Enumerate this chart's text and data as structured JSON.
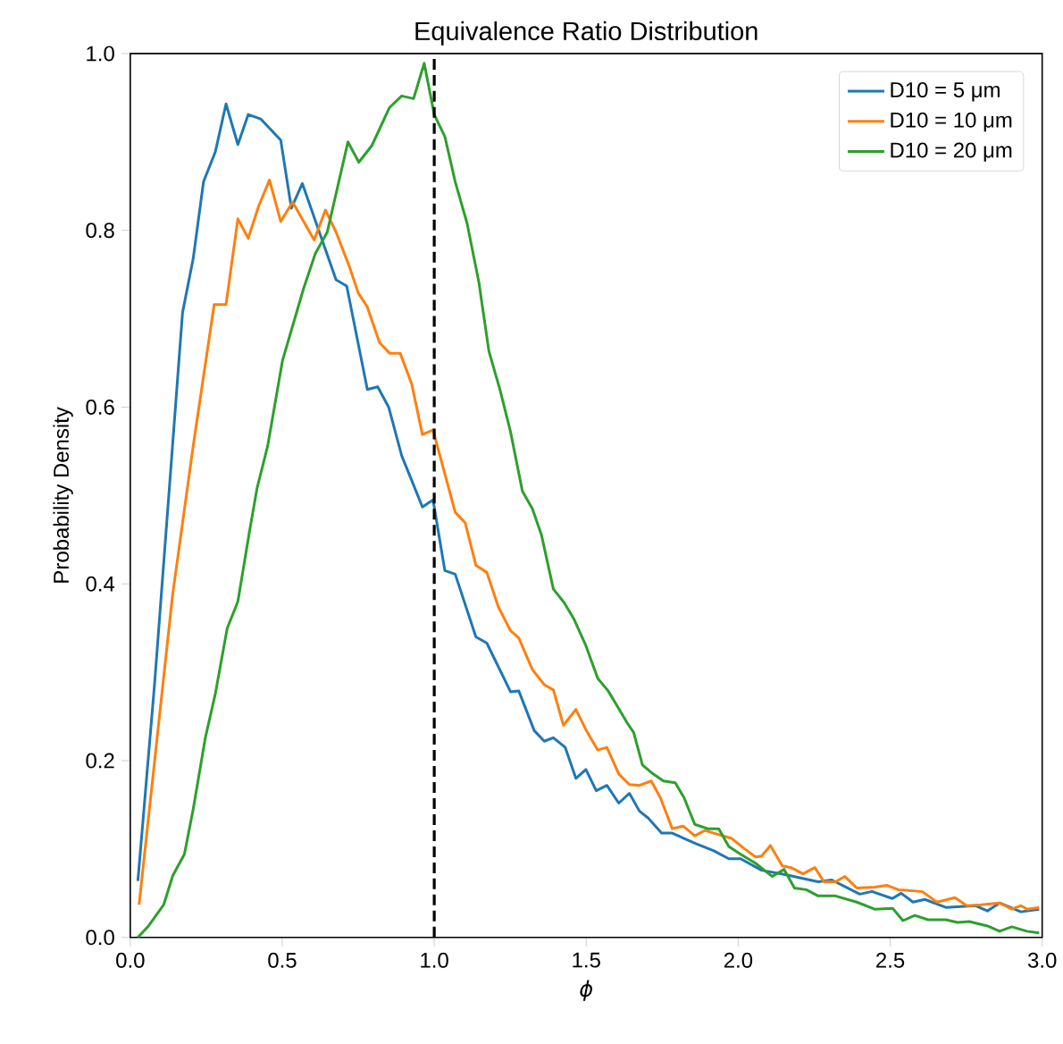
{
  "chart_data": {
    "type": "line",
    "title": "Equivalence Ratio Distribution",
    "xlabel": "ϕ",
    "ylabel": "Probability Density",
    "xlim": [
      0,
      3
    ],
    "ylim": [
      0,
      1
    ],
    "xticks": [
      {
        "value": 0,
        "label": "0.0"
      },
      {
        "value": 0.5,
        "label": "0.5"
      },
      {
        "value": 1,
        "label": "1.0"
      },
      {
        "value": 1.5,
        "label": "1.5"
      },
      {
        "value": 2,
        "label": "2.0"
      },
      {
        "value": 2.5,
        "label": "2.5"
      },
      {
        "value": 3,
        "label": "3.0"
      }
    ],
    "yticks": [
      {
        "value": 0,
        "label": "0.0"
      },
      {
        "value": 0.2,
        "label": "0.2"
      },
      {
        "value": 0.4,
        "label": "0.4"
      },
      {
        "value": 0.6,
        "label": "0.6"
      },
      {
        "value": 0.8,
        "label": "0.8"
      },
      {
        "value": 1,
        "label": "1.0"
      }
    ],
    "legend": "top right",
    "grid": false,
    "marker": "none",
    "line_style": "solid",
    "ref_lines": [
      {
        "axis": "x",
        "value": 1,
        "color": "#000000",
        "line_style": "dashed"
      }
    ],
    "series": [
      {
        "name": "D10 = 5 μm",
        "color": "#1f77b4",
        "x": [
          0.025,
          0.08,
          0.139,
          0.172,
          0.207,
          0.241,
          0.28,
          0.315,
          0.354,
          0.388,
          0.429,
          0.495,
          0.53,
          0.566,
          0.677,
          0.712,
          0.78,
          0.814,
          0.85,
          0.893,
          0.94,
          0.961,
          0.996,
          1.035,
          1.069,
          1.137,
          1.173,
          1.251,
          1.278,
          1.329,
          1.362,
          1.392,
          1.431,
          1.466,
          1.499,
          1.533,
          1.568,
          1.607,
          1.642,
          1.675,
          1.704,
          1.748,
          1.783,
          1.861,
          1.92,
          1.969,
          2.008,
          2.077,
          2.155,
          2.263,
          2.308,
          2.4,
          2.44,
          2.507,
          2.536,
          2.575,
          2.614,
          2.683,
          2.78,
          2.82,
          2.86,
          2.93,
          2.99
        ],
        "values": [
          0.064,
          0.287,
          0.556,
          0.707,
          0.768,
          0.855,
          0.889,
          0.943,
          0.897,
          0.931,
          0.926,
          0.902,
          0.825,
          0.853,
          0.744,
          0.737,
          0.62,
          0.623,
          0.6,
          0.545,
          0.505,
          0.487,
          0.495,
          0.415,
          0.411,
          0.34,
          0.333,
          0.278,
          0.279,
          0.234,
          0.222,
          0.226,
          0.215,
          0.18,
          0.19,
          0.166,
          0.172,
          0.152,
          0.163,
          0.143,
          0.135,
          0.118,
          0.118,
          0.106,
          0.098,
          0.089,
          0.089,
          0.076,
          0.071,
          0.063,
          0.065,
          0.049,
          0.052,
          0.044,
          0.05,
          0.04,
          0.043,
          0.034,
          0.036,
          0.03,
          0.039,
          0.029,
          0.032
        ]
      },
      {
        "name": "D10 = 10 μm",
        "color": "#ff7f0e",
        "x": [
          0.029,
          0.139,
          0.207,
          0.276,
          0.315,
          0.354,
          0.388,
          0.423,
          0.458,
          0.495,
          0.534,
          0.605,
          0.642,
          0.677,
          0.722,
          0.75,
          0.779,
          0.82,
          0.853,
          0.888,
          0.926,
          0.961,
          0.996,
          1.069,
          1.102,
          1.137,
          1.173,
          1.211,
          1.251,
          1.278,
          1.323,
          1.362,
          1.392,
          1.425,
          1.466,
          1.499,
          1.538,
          1.568,
          1.607,
          1.642,
          1.675,
          1.714,
          1.744,
          1.783,
          1.819,
          1.857,
          1.89,
          1.92,
          1.979,
          2.018,
          2.057,
          2.077,
          2.106,
          2.145,
          2.174,
          2.213,
          2.252,
          2.282,
          2.32,
          2.351,
          2.39,
          2.45,
          2.488,
          2.527,
          2.605,
          2.654,
          2.713,
          2.752,
          2.8,
          2.86,
          2.9,
          2.93,
          2.95,
          2.99
        ],
        "values": [
          0.037,
          0.387,
          0.556,
          0.716,
          0.716,
          0.813,
          0.791,
          0.828,
          0.857,
          0.81,
          0.832,
          0.789,
          0.823,
          0.798,
          0.758,
          0.729,
          0.714,
          0.673,
          0.661,
          0.661,
          0.626,
          0.569,
          0.574,
          0.481,
          0.469,
          0.421,
          0.413,
          0.374,
          0.347,
          0.339,
          0.303,
          0.286,
          0.28,
          0.24,
          0.258,
          0.235,
          0.212,
          0.215,
          0.185,
          0.173,
          0.172,
          0.177,
          0.158,
          0.123,
          0.126,
          0.115,
          0.121,
          0.118,
          0.112,
          0.101,
          0.091,
          0.092,
          0.104,
          0.081,
          0.079,
          0.072,
          0.079,
          0.063,
          0.063,
          0.069,
          0.056,
          0.057,
          0.059,
          0.054,
          0.052,
          0.04,
          0.045,
          0.036,
          0.037,
          0.039,
          0.032,
          0.036,
          0.032,
          0.034
        ]
      },
      {
        "name": "D10 = 20 μm",
        "color": "#2ca02c",
        "x": [
          0.025,
          0.06,
          0.11,
          0.14,
          0.178,
          0.207,
          0.247,
          0.28,
          0.319,
          0.354,
          0.393,
          0.417,
          0.452,
          0.501,
          0.57,
          0.609,
          0.648,
          0.716,
          0.752,
          0.795,
          0.853,
          0.893,
          0.932,
          0.967,
          1.0,
          1.035,
          1.069,
          1.108,
          1.147,
          1.18,
          1.216,
          1.251,
          1.29,
          1.323,
          1.353,
          1.392,
          1.427,
          1.46,
          1.499,
          1.538,
          1.572,
          1.607,
          1.636,
          1.656,
          1.685,
          1.72,
          1.754,
          1.793,
          1.822,
          1.857,
          1.9,
          1.936,
          1.969,
          2.008,
          2.057,
          2.112,
          2.151,
          2.185,
          2.224,
          2.263,
          2.32,
          2.39,
          2.449,
          2.508,
          2.542,
          2.581,
          2.625,
          2.683,
          2.722,
          2.76,
          2.82,
          2.86,
          2.9,
          2.95,
          2.99
        ],
        "values": [
          0.0,
          0.013,
          0.037,
          0.07,
          0.094,
          0.145,
          0.226,
          0.276,
          0.35,
          0.38,
          0.461,
          0.508,
          0.556,
          0.653,
          0.734,
          0.774,
          0.798,
          0.9,
          0.877,
          0.896,
          0.939,
          0.952,
          0.949,
          0.989,
          0.931,
          0.906,
          0.855,
          0.808,
          0.741,
          0.663,
          0.62,
          0.572,
          0.505,
          0.485,
          0.455,
          0.394,
          0.379,
          0.36,
          0.33,
          0.293,
          0.279,
          0.259,
          0.242,
          0.232,
          0.195,
          0.185,
          0.177,
          0.175,
          0.158,
          0.128,
          0.123,
          0.123,
          0.103,
          0.094,
          0.084,
          0.069,
          0.077,
          0.056,
          0.054,
          0.047,
          0.047,
          0.04,
          0.032,
          0.033,
          0.019,
          0.025,
          0.02,
          0.02,
          0.017,
          0.018,
          0.013,
          0.007,
          0.012,
          0.007,
          0.005
        ]
      }
    ]
  }
}
